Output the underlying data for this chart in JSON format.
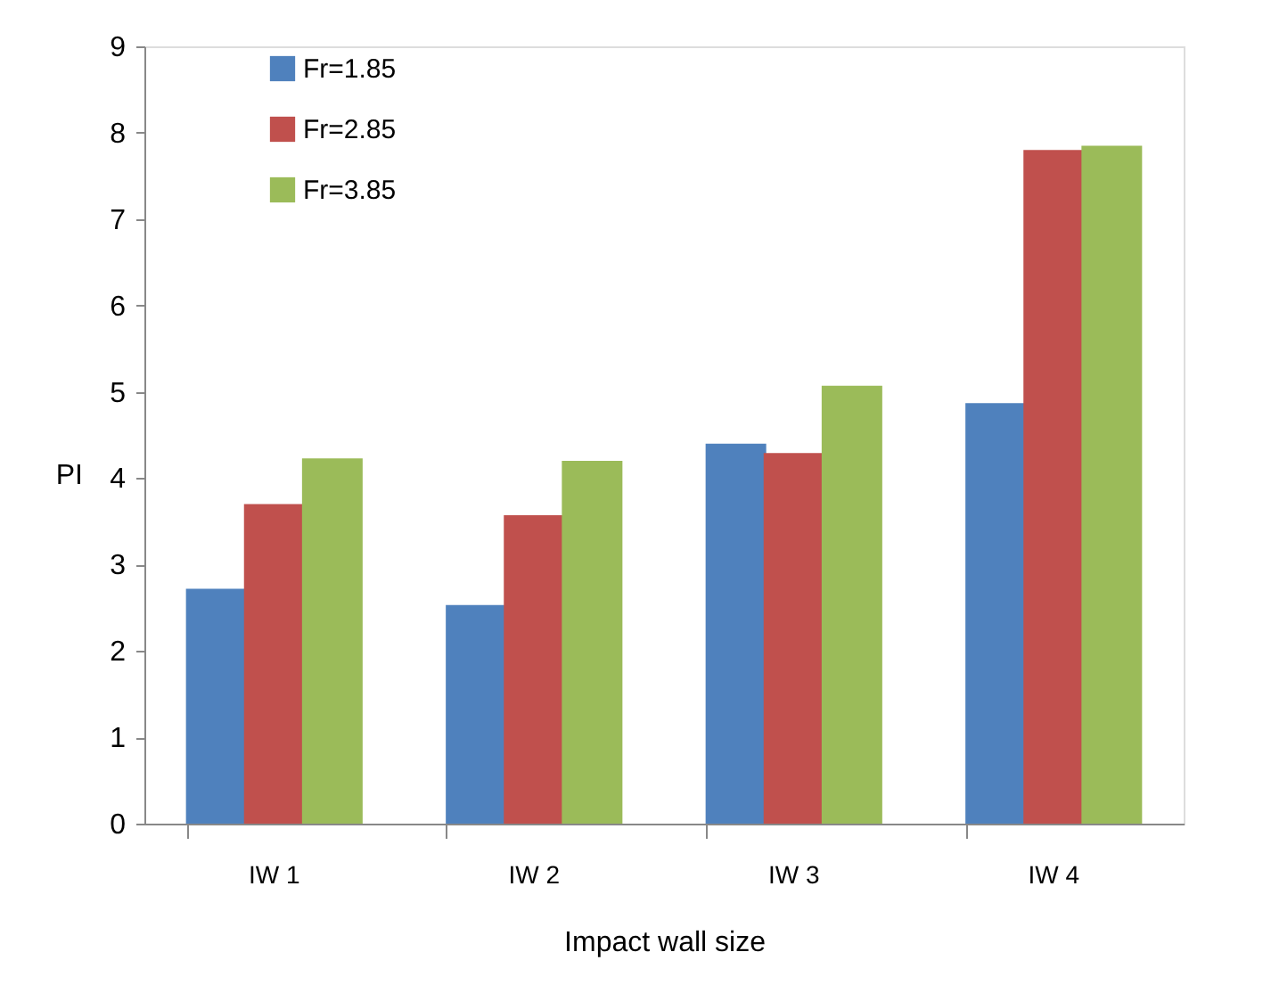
{
  "chart_data": {
    "type": "bar",
    "xlabel": "Impact wall size",
    "ylabel": "PI",
    "categories": [
      "IW 1",
      "IW 2",
      "IW 3",
      "IW 4"
    ],
    "series": [
      {
        "name": "Fr=1.85",
        "color": "#4f81bd",
        "values": [
          2.72,
          2.53,
          4.4,
          4.87
        ]
      },
      {
        "name": "Fr=2.85",
        "color": "#c0504d",
        "values": [
          3.7,
          3.57,
          4.29,
          7.8
        ]
      },
      {
        "name": "Fr=3.85",
        "color": "#9bbb59",
        "values": [
          4.23,
          4.2,
          5.07,
          7.85
        ]
      }
    ],
    "ylim": [
      0,
      9
    ],
    "yticks": [
      0,
      1,
      2,
      3,
      4,
      5,
      6,
      7,
      8,
      9
    ],
    "grid": false,
    "legend": "top left"
  }
}
